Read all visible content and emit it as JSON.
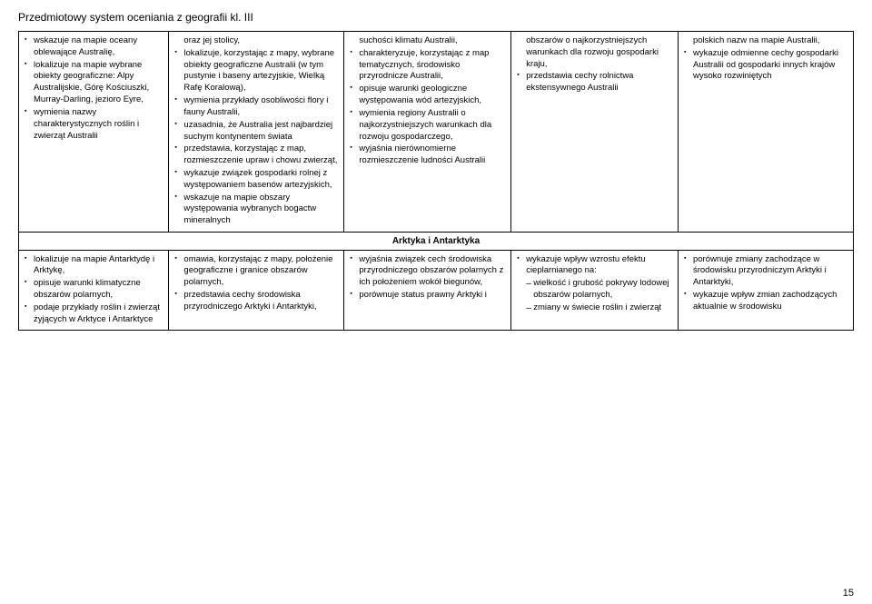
{
  "header": "Przedmiotowy system oceniania z geografii kl. III",
  "pageNumber": "15",
  "columnWidths": [
    "18%",
    "21%",
    "20%",
    "20%",
    "21%"
  ],
  "rows": [
    {
      "cells": [
        {
          "items": [
            {
              "t": "wskazuje na mapie oceany oblewające Australię,"
            },
            {
              "t": "lokalizuje na mapie wybrane obiekty geograficzne: Alpy Australijskie, Górę Kościuszki, Murray-Darling, jezioro Eyre,"
            },
            {
              "t": "wymienia nazwy charakterystycznych roślin i zwierząt Australii"
            }
          ]
        },
        {
          "items": [
            {
              "t": "oraz jej stolicy,",
              "noBullet": true
            },
            {
              "t": "lokalizuje, korzystając z mapy, wybrane obiekty geograficzne Australii (w tym pustynie i baseny artezyjskie, Wielką Rafę Koralową),"
            },
            {
              "t": "wymienia przykłady osobliwości flory i fauny Australii,"
            },
            {
              "t": "uzasadnia, że Australia jest najbardziej suchym kontynentem świata"
            },
            {
              "t": "przedstawia, korzystając z map, rozmieszczenie upraw i chowu zwierząt,"
            },
            {
              "t": "wykazuje związek gospodarki rolnej z występowaniem basenów artezyjskich,"
            },
            {
              "t": "wskazuje na mapie obszary występowania wybranych bogactw mineralnych"
            }
          ]
        },
        {
          "items": [
            {
              "t": "suchości klimatu Australii,",
              "noBullet": true
            },
            {
              "t": "charakteryzuje, korzystając z map tematycznych, środowisko przyrodnicze Australii,"
            },
            {
              "t": "opisuje warunki geologiczne występowania wód artezyjskich,"
            },
            {
              "t": "wymienia regiony Australii o najkorzystniejszych warunkach dla rozwoju gospodarczego,"
            },
            {
              "t": "wyjaśnia nierównomierne rozmieszczenie ludności Australii"
            }
          ]
        },
        {
          "items": [
            {
              "t": "obszarów o najkorzystniejszych warunkach dla rozwoju gospodarki kraju,",
              "noBullet": true
            },
            {
              "t": "przedstawia cechy rolnictwa ekstensywnego Australii"
            }
          ]
        },
        {
          "items": [
            {
              "t": "polskich nazw na mapie Australii,",
              "noBullet": true
            },
            {
              "t": "wykazuje odmienne cechy gospodarki Australii od gospodarki innych krajów wysoko rozwiniętych"
            }
          ]
        }
      ]
    },
    {
      "subheading": "Arktyka i Antarktyka"
    },
    {
      "cells": [
        {
          "items": [
            {
              "t": "lokalizuje na mapie Antarktydę i Arktykę,"
            },
            {
              "t": "opisuje warunki klimatyczne obszarów polarnych,"
            },
            {
              "t": "podaje przykłady roślin i zwierząt żyjących w Arktyce i Antarktyce"
            }
          ]
        },
        {
          "items": [
            {
              "t": "omawia, korzystając z mapy, położenie geograficzne i granice obszarów polarnych,"
            },
            {
              "t": "przedstawia cechy środowiska przyrodniczego Arktyki i Antarktyki,"
            }
          ]
        },
        {
          "items": [
            {
              "t": "wyjaśnia związek cech środowiska przyrodniczego obszarów polarnych z ich położeniem wokół biegunów,"
            },
            {
              "t": "porównuje status prawny Arktyki i"
            }
          ]
        },
        {
          "items": [
            {
              "t": "wykazuje wpływ wzrostu efektu cieplarnianego na:"
            },
            {
              "t": "wielkość i grubość pokrywy lodowej obszarów polarnych,",
              "dash": true
            },
            {
              "t": "zmiany w świecie roślin i zwierząt",
              "dash": true
            }
          ]
        },
        {
          "items": [
            {
              "t": "porównuje zmiany zachodzące w środowisku przyrodniczym Arktyki i Antarktyki,"
            },
            {
              "t": "wykazuje wpływ zmian zachodzących aktualnie w środowisku"
            }
          ]
        }
      ]
    }
  ]
}
